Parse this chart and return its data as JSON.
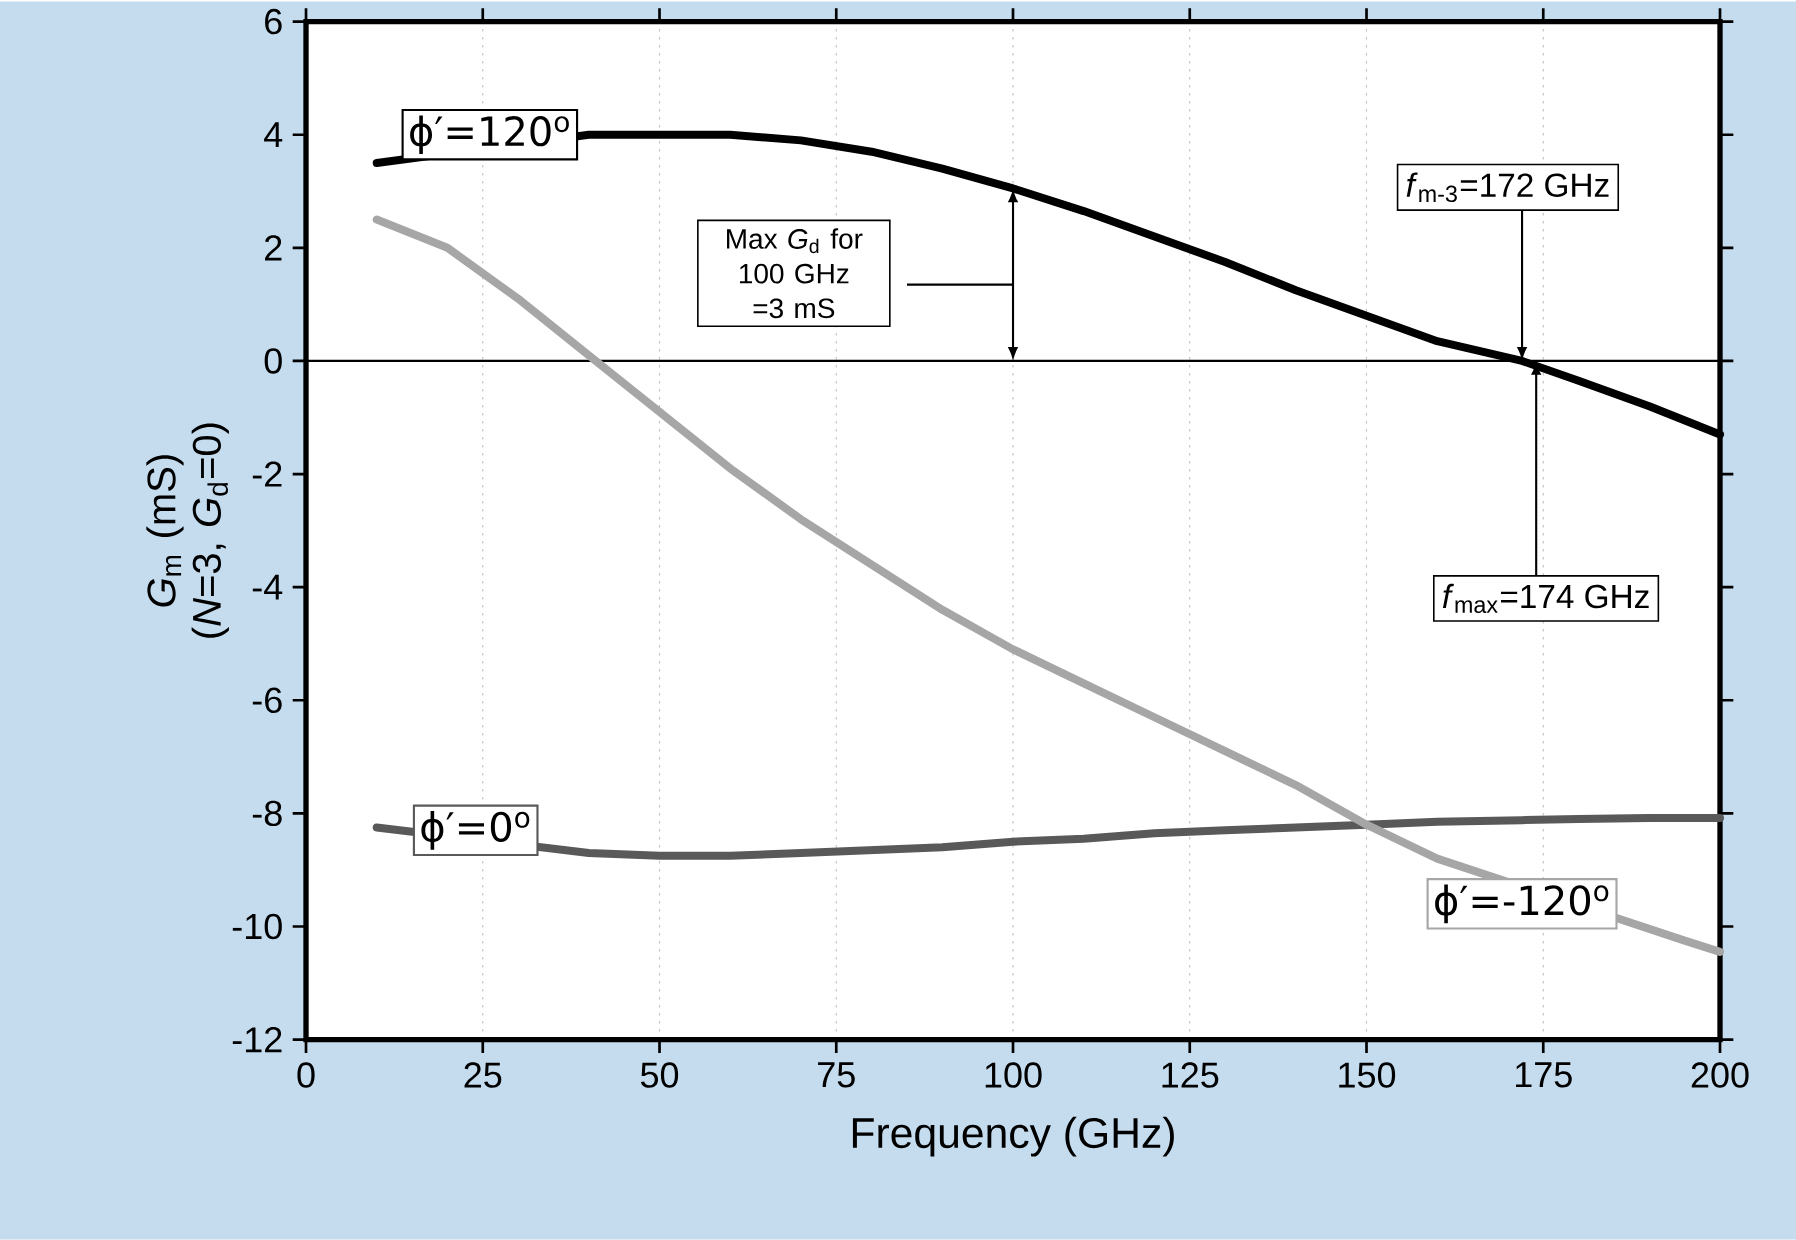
{
  "chart_data": {
    "type": "line",
    "xlabel": "Frequency (GHz)",
    "ylabel": "*G*$_{m}$ (mS) (*N*=3, *G*$_{d}$=0)",
    "xlim": [
      0,
      200
    ],
    "ylim": [
      -12,
      6
    ],
    "xticks": [
      0,
      25,
      50,
      75,
      100,
      125,
      150,
      175,
      200
    ],
    "yticks": [
      -12,
      -10,
      -8,
      -6,
      -4,
      -2,
      0,
      2,
      4,
      6
    ],
    "grid": "x",
    "marker": "none",
    "line_style": "solid",
    "series": [
      {
        "name": "ϕ′=120$^{o}$",
        "color": "#000000",
        "x": [
          10,
          40,
          50,
          60,
          70,
          80,
          90,
          100,
          110,
          120,
          130,
          140,
          150,
          160,
          172,
          180,
          190,
          200
        ],
        "values": [
          3.5,
          4.0,
          4.0,
          4.0,
          3.9,
          3.7,
          3.4,
          3.05,
          2.65,
          2.2,
          1.75,
          1.25,
          0.8,
          0.35,
          0,
          -0.35,
          -0.8,
          -1.3
        ]
      },
      {
        "name": "ϕ′=0$^{o}$",
        "color": "#595959",
        "x": [
          10,
          40,
          50,
          60,
          70,
          80,
          90,
          100,
          110,
          120,
          130,
          140,
          150,
          160,
          172,
          180,
          190,
          200
        ],
        "values": [
          -8.25,
          -8.7,
          -8.75,
          -8.75,
          -8.7,
          -8.65,
          -8.6,
          -8.5,
          -8.45,
          -8.35,
          -8.3,
          -8.25,
          -8.2,
          -8.15,
          -8.12,
          -8.1,
          -8.08,
          -8.08
        ]
      },
      {
        "name": "ϕ′=-120$^{o}$",
        "color": "#a6a6a6",
        "x": [
          10,
          20,
          30,
          40,
          50,
          60,
          70,
          80,
          90,
          100,
          110,
          120,
          130,
          140,
          150,
          160,
          195,
          200
        ],
        "values": [
          2.5,
          2.0,
          1.1,
          0.1,
          -0.9,
          -1.9,
          -2.8,
          -3.6,
          -4.4,
          -5.1,
          -5.7,
          -6.3,
          -6.9,
          -7.5,
          -8.2,
          -8.8,
          -10.25,
          -10.45
        ]
      }
    ],
    "ref_lines": [
      {
        "axis": "y",
        "value": 0
      }
    ],
    "annotations": [
      "Max *G*$_{d}$ for 100 GHz =3 mS",
      {
        "text": "*f*$_{m-3}$=172 GHz",
        "x": 172,
        "y": 0
      },
      {
        "text": "*f*$_{max}$=174 GHz",
        "x": 174,
        "y": 0
      }
    ]
  }
}
